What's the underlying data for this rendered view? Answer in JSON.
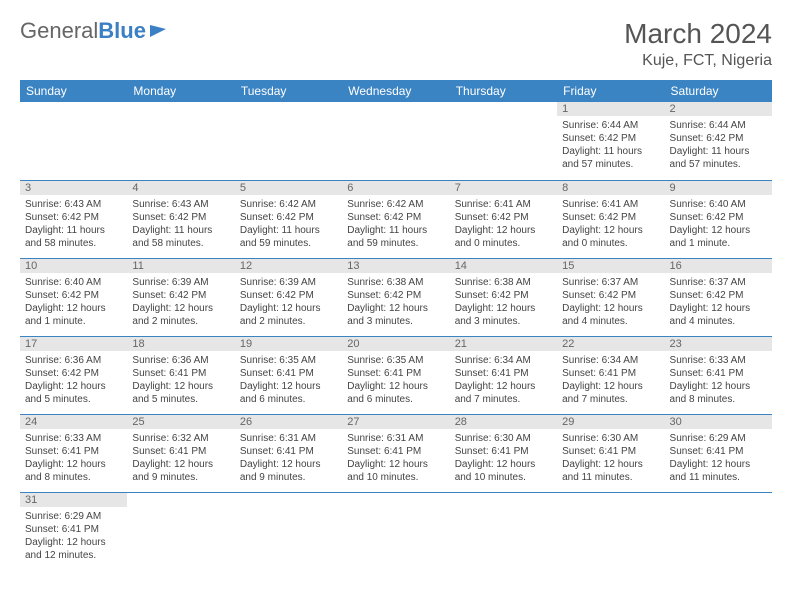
{
  "logo": {
    "text1": "General",
    "text2": "Blue"
  },
  "title": "March 2024",
  "location": "Kuje, FCT, Nigeria",
  "colors": {
    "header_bg": "#3b84c4",
    "header_text": "#ffffff",
    "daynum_bg": "#e6e6e6",
    "daynum_text": "#666666",
    "row_border": "#3b84c4",
    "body_text": "#444444",
    "title_text": "#555555"
  },
  "dow": [
    "Sunday",
    "Monday",
    "Tuesday",
    "Wednesday",
    "Thursday",
    "Friday",
    "Saturday"
  ],
  "weeks": [
    [
      null,
      null,
      null,
      null,
      null,
      {
        "n": "1",
        "sr": "Sunrise: 6:44 AM",
        "ss": "Sunset: 6:42 PM",
        "dl": "Daylight: 11 hours and 57 minutes."
      },
      {
        "n": "2",
        "sr": "Sunrise: 6:44 AM",
        "ss": "Sunset: 6:42 PM",
        "dl": "Daylight: 11 hours and 57 minutes."
      }
    ],
    [
      {
        "n": "3",
        "sr": "Sunrise: 6:43 AM",
        "ss": "Sunset: 6:42 PM",
        "dl": "Daylight: 11 hours and 58 minutes."
      },
      {
        "n": "4",
        "sr": "Sunrise: 6:43 AM",
        "ss": "Sunset: 6:42 PM",
        "dl": "Daylight: 11 hours and 58 minutes."
      },
      {
        "n": "5",
        "sr": "Sunrise: 6:42 AM",
        "ss": "Sunset: 6:42 PM",
        "dl": "Daylight: 11 hours and 59 minutes."
      },
      {
        "n": "6",
        "sr": "Sunrise: 6:42 AM",
        "ss": "Sunset: 6:42 PM",
        "dl": "Daylight: 11 hours and 59 minutes."
      },
      {
        "n": "7",
        "sr": "Sunrise: 6:41 AM",
        "ss": "Sunset: 6:42 PM",
        "dl": "Daylight: 12 hours and 0 minutes."
      },
      {
        "n": "8",
        "sr": "Sunrise: 6:41 AM",
        "ss": "Sunset: 6:42 PM",
        "dl": "Daylight: 12 hours and 0 minutes."
      },
      {
        "n": "9",
        "sr": "Sunrise: 6:40 AM",
        "ss": "Sunset: 6:42 PM",
        "dl": "Daylight: 12 hours and 1 minute."
      }
    ],
    [
      {
        "n": "10",
        "sr": "Sunrise: 6:40 AM",
        "ss": "Sunset: 6:42 PM",
        "dl": "Daylight: 12 hours and 1 minute."
      },
      {
        "n": "11",
        "sr": "Sunrise: 6:39 AM",
        "ss": "Sunset: 6:42 PM",
        "dl": "Daylight: 12 hours and 2 minutes."
      },
      {
        "n": "12",
        "sr": "Sunrise: 6:39 AM",
        "ss": "Sunset: 6:42 PM",
        "dl": "Daylight: 12 hours and 2 minutes."
      },
      {
        "n": "13",
        "sr": "Sunrise: 6:38 AM",
        "ss": "Sunset: 6:42 PM",
        "dl": "Daylight: 12 hours and 3 minutes."
      },
      {
        "n": "14",
        "sr": "Sunrise: 6:38 AM",
        "ss": "Sunset: 6:42 PM",
        "dl": "Daylight: 12 hours and 3 minutes."
      },
      {
        "n": "15",
        "sr": "Sunrise: 6:37 AM",
        "ss": "Sunset: 6:42 PM",
        "dl": "Daylight: 12 hours and 4 minutes."
      },
      {
        "n": "16",
        "sr": "Sunrise: 6:37 AM",
        "ss": "Sunset: 6:42 PM",
        "dl": "Daylight: 12 hours and 4 minutes."
      }
    ],
    [
      {
        "n": "17",
        "sr": "Sunrise: 6:36 AM",
        "ss": "Sunset: 6:42 PM",
        "dl": "Daylight: 12 hours and 5 minutes."
      },
      {
        "n": "18",
        "sr": "Sunrise: 6:36 AM",
        "ss": "Sunset: 6:41 PM",
        "dl": "Daylight: 12 hours and 5 minutes."
      },
      {
        "n": "19",
        "sr": "Sunrise: 6:35 AM",
        "ss": "Sunset: 6:41 PM",
        "dl": "Daylight: 12 hours and 6 minutes."
      },
      {
        "n": "20",
        "sr": "Sunrise: 6:35 AM",
        "ss": "Sunset: 6:41 PM",
        "dl": "Daylight: 12 hours and 6 minutes."
      },
      {
        "n": "21",
        "sr": "Sunrise: 6:34 AM",
        "ss": "Sunset: 6:41 PM",
        "dl": "Daylight: 12 hours and 7 minutes."
      },
      {
        "n": "22",
        "sr": "Sunrise: 6:34 AM",
        "ss": "Sunset: 6:41 PM",
        "dl": "Daylight: 12 hours and 7 minutes."
      },
      {
        "n": "23",
        "sr": "Sunrise: 6:33 AM",
        "ss": "Sunset: 6:41 PM",
        "dl": "Daylight: 12 hours and 8 minutes."
      }
    ],
    [
      {
        "n": "24",
        "sr": "Sunrise: 6:33 AM",
        "ss": "Sunset: 6:41 PM",
        "dl": "Daylight: 12 hours and 8 minutes."
      },
      {
        "n": "25",
        "sr": "Sunrise: 6:32 AM",
        "ss": "Sunset: 6:41 PM",
        "dl": "Daylight: 12 hours and 9 minutes."
      },
      {
        "n": "26",
        "sr": "Sunrise: 6:31 AM",
        "ss": "Sunset: 6:41 PM",
        "dl": "Daylight: 12 hours and 9 minutes."
      },
      {
        "n": "27",
        "sr": "Sunrise: 6:31 AM",
        "ss": "Sunset: 6:41 PM",
        "dl": "Daylight: 12 hours and 10 minutes."
      },
      {
        "n": "28",
        "sr": "Sunrise: 6:30 AM",
        "ss": "Sunset: 6:41 PM",
        "dl": "Daylight: 12 hours and 10 minutes."
      },
      {
        "n": "29",
        "sr": "Sunrise: 6:30 AM",
        "ss": "Sunset: 6:41 PM",
        "dl": "Daylight: 12 hours and 11 minutes."
      },
      {
        "n": "30",
        "sr": "Sunrise: 6:29 AM",
        "ss": "Sunset: 6:41 PM",
        "dl": "Daylight: 12 hours and 11 minutes."
      }
    ],
    [
      {
        "n": "31",
        "sr": "Sunrise: 6:29 AM",
        "ss": "Sunset: 6:41 PM",
        "dl": "Daylight: 12 hours and 12 minutes."
      },
      null,
      null,
      null,
      null,
      null,
      null
    ]
  ]
}
